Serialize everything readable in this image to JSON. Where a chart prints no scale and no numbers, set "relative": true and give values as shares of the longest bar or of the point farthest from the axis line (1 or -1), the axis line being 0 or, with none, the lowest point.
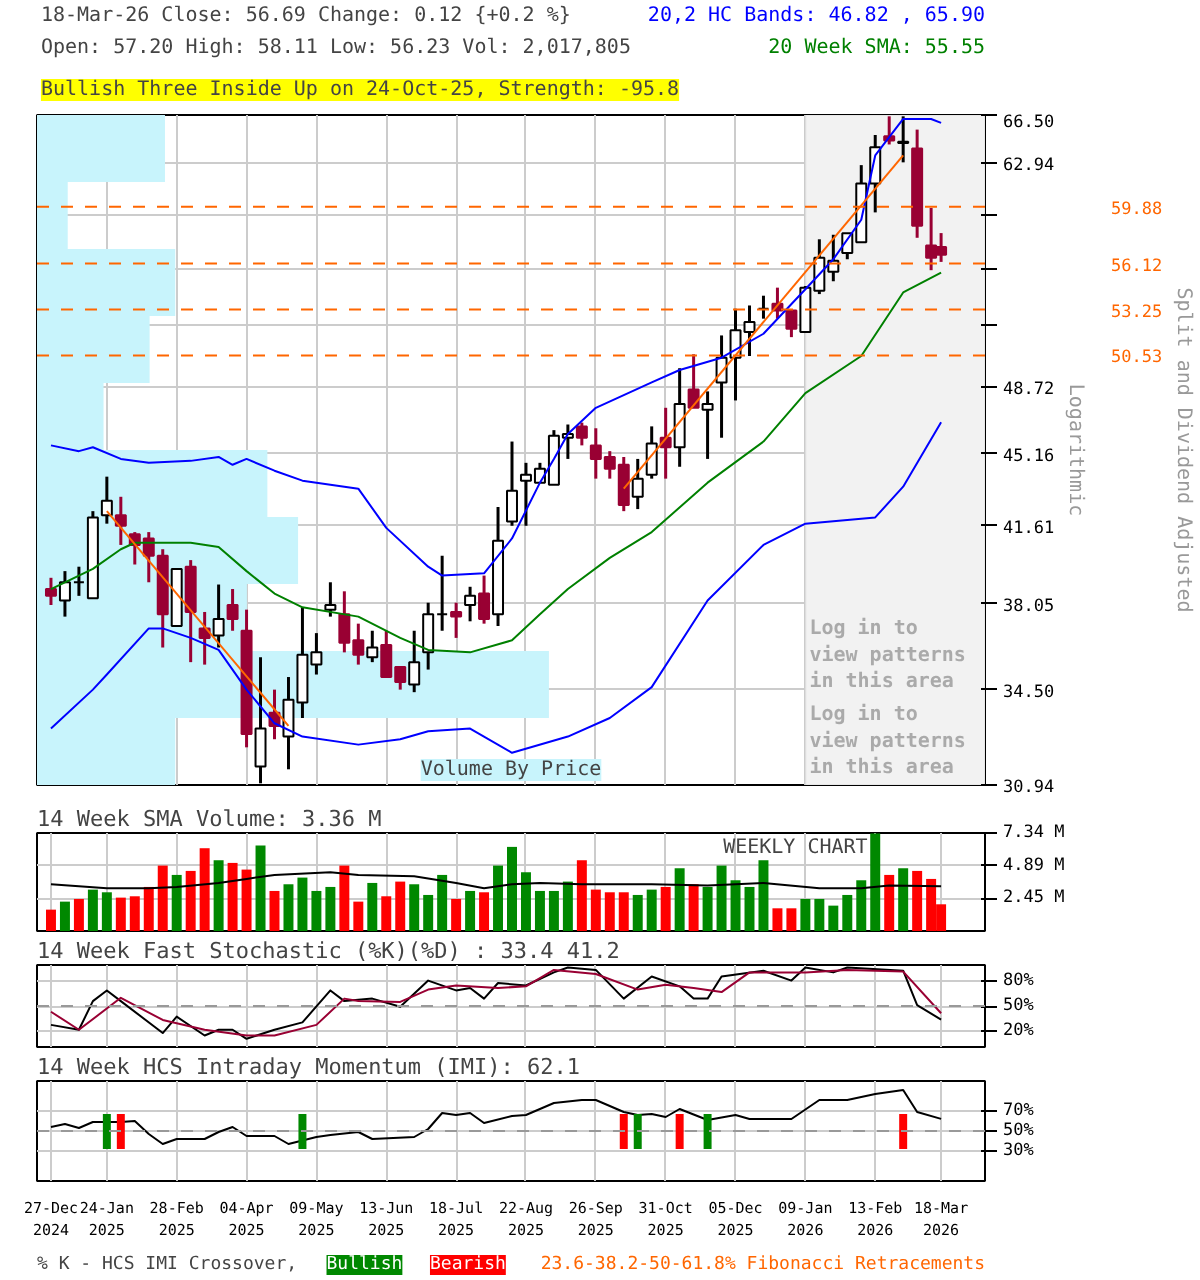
{
  "chart_data": [
    {
      "type": "candlestick",
      "title": "18-Mar-26   Close: 56.69   Change: 0.12 {+0.2 %}",
      "subtitle": "Open: 57.20   High: 58.11   Low: 56.23   Vol: 2,017,805",
      "ylabel": "Split and Dividend Adjusted",
      "annotations": [
        "Bullish Three Inside Up on 24-Oct-25, Strength: -95.8",
        "Logarithmic",
        "Log in to view patterns in this area"
      ],
      "x": [
        "2024-12-27",
        "2025-01-03",
        "2025-01-10",
        "2025-01-17",
        "2025-01-24",
        "2025-01-31",
        "2025-02-07",
        "2025-02-14",
        "2025-02-21",
        "2025-02-28",
        "2025-03-07",
        "2025-03-14",
        "2025-03-21",
        "2025-03-28",
        "2025-04-04",
        "2025-04-11",
        "2025-04-18",
        "2025-04-25",
        "2025-05-02",
        "2025-05-09",
        "2025-05-16",
        "2025-05-23",
        "2025-05-30",
        "2025-06-06",
        "2025-06-13",
        "2025-06-20",
        "2025-06-27",
        "2025-07-04",
        "2025-07-11",
        "2025-07-18",
        "2025-07-25",
        "2025-08-01",
        "2025-08-08",
        "2025-08-15",
        "2025-08-22",
        "2025-08-29",
        "2025-09-05",
        "2025-09-12",
        "2025-09-19",
        "2025-09-26",
        "2025-10-03",
        "2025-10-10",
        "2025-10-17",
        "2025-10-24",
        "2025-10-31",
        "2025-11-07",
        "2025-11-14",
        "2025-11-21",
        "2025-11-28",
        "2025-12-05",
        "2025-12-12",
        "2025-12-19",
        "2025-12-26",
        "2026-01-02",
        "2026-01-09",
        "2026-01-16",
        "2026-01-23",
        "2026-01-30",
        "2026-02-06",
        "2026-02-13",
        "2026-02-20",
        "2026-02-27",
        "2026-03-06",
        "2026-03-13",
        "2026-03-18"
      ],
      "ohlc": [
        [
          38.7,
          39.2,
          38.0,
          38.4
        ],
        [
          38.2,
          39.5,
          37.5,
          39.0
        ],
        [
          39.0,
          39.7,
          38.4,
          39.0
        ],
        [
          38.3,
          42.3,
          38.3,
          42.0
        ],
        [
          42.1,
          44.0,
          41.7,
          42.8
        ],
        [
          42.1,
          43.0,
          40.7,
          41.6
        ],
        [
          41.2,
          41.3,
          39.8,
          40.7
        ],
        [
          41.0,
          41.3,
          39.0,
          40.2
        ],
        [
          40.2,
          40.5,
          36.2,
          37.6
        ],
        [
          37.1,
          39.6,
          37.1,
          39.6
        ],
        [
          39.7,
          40.0,
          35.6,
          37.7
        ],
        [
          37.0,
          37.7,
          35.5,
          36.6
        ],
        [
          36.7,
          38.9,
          36.2,
          37.4
        ],
        [
          38.0,
          38.7,
          36.9,
          37.4
        ],
        [
          36.9,
          37.8,
          32.3,
          32.8
        ],
        [
          31.6,
          35.8,
          31.0,
          33.0
        ],
        [
          33.6,
          34.5,
          32.6,
          33.1
        ],
        [
          32.7,
          35.0,
          31.5,
          34.1
        ],
        [
          34.0,
          37.9,
          33.4,
          35.9
        ],
        [
          35.5,
          36.8,
          35.1,
          36.0
        ],
        [
          37.8,
          39.0,
          37.5,
          38.0
        ],
        [
          37.6,
          38.6,
          36.0,
          36.4
        ],
        [
          36.5,
          37.2,
          35.5,
          35.9
        ],
        [
          35.8,
          36.9,
          35.6,
          36.2
        ],
        [
          36.3,
          36.9,
          35.0,
          35.0
        ],
        [
          35.4,
          35.4,
          34.5,
          34.8
        ],
        [
          34.7,
          36.9,
          34.4,
          35.6
        ],
        [
          36.0,
          38.1,
          35.3,
          37.6
        ],
        [
          37.6,
          40.2,
          36.9,
          37.6
        ],
        [
          37.7,
          38.1,
          36.6,
          37.5
        ],
        [
          38.0,
          38.8,
          37.3,
          38.4
        ],
        [
          38.5,
          39.3,
          37.2,
          37.4
        ],
        [
          37.6,
          42.5,
          37.1,
          40.9
        ],
        [
          41.8,
          45.8,
          41.6,
          43.3
        ],
        [
          43.8,
          44.7,
          41.6,
          44.1
        ],
        [
          43.7,
          44.7,
          43.7,
          44.4
        ],
        [
          43.6,
          46.4,
          43.6,
          46.1
        ],
        [
          46.0,
          46.7,
          44.9,
          46.2
        ],
        [
          46.6,
          46.8,
          45.6,
          46.0
        ],
        [
          45.6,
          46.5,
          43.9,
          44.9
        ],
        [
          45.0,
          45.3,
          43.9,
          44.4
        ],
        [
          44.6,
          45.0,
          42.3,
          42.6
        ],
        [
          43.0,
          44.9,
          42.4,
          43.9
        ],
        [
          44.1,
          46.6,
          43.9,
          45.7
        ],
        [
          46.0,
          47.6,
          43.9,
          45.5
        ],
        [
          45.5,
          49.8,
          44.5,
          47.8
        ],
        [
          48.6,
          50.6,
          47.6,
          47.6
        ],
        [
          47.5,
          48.5,
          44.9,
          47.8
        ],
        [
          49.0,
          51.7,
          46.0,
          50.4
        ],
        [
          50.4,
          53.3,
          48.0,
          52.0
        ],
        [
          51.9,
          53.5,
          50.5,
          52.5
        ],
        [
          53.3,
          54.1,
          52.7,
          53.3
        ],
        [
          53.6,
          54.6,
          52.7,
          53.2
        ],
        [
          53.2,
          53.2,
          51.6,
          52.1
        ],
        [
          51.9,
          54.7,
          51.9,
          54.6
        ],
        [
          54.4,
          57.7,
          54.2,
          56.5
        ],
        [
          55.6,
          58.0,
          55.0,
          56.3
        ],
        [
          56.8,
          58.1,
          56.4,
          58.1
        ],
        [
          57.5,
          62.8,
          57.5,
          61.5
        ],
        [
          61.5,
          65.0,
          59.5,
          64.1
        ],
        [
          64.9,
          66.4,
          64.3,
          64.6
        ],
        [
          64.4,
          66.4,
          63.0,
          64.5
        ],
        [
          64.0,
          65.4,
          57.8,
          58.6
        ],
        [
          57.3,
          59.8,
          55.7,
          56.5
        ],
        [
          57.2,
          58.11,
          56.23,
          56.69
        ]
      ],
      "colors": [
        "#990033",
        "#ffffff",
        "#000000",
        "#ffffff",
        "#ffffff",
        "#990033",
        "#990033",
        "#990033",
        "#990033",
        "#ffffff",
        "#990033",
        "#990033",
        "#ffffff",
        "#990033",
        "#990033",
        "#ffffff",
        "#990033",
        "#ffffff",
        "#ffffff",
        "#ffffff",
        "#ffffff",
        "#990033",
        "#990033",
        "#ffffff",
        "#990033",
        "#990033",
        "#ffffff",
        "#ffffff",
        "#000000",
        "#990033",
        "#ffffff",
        "#990033",
        "#ffffff",
        "#ffffff",
        "#ffffff",
        "#ffffff",
        "#ffffff",
        "#ffffff",
        "#990033",
        "#990033",
        "#990033",
        "#990033",
        "#ffffff",
        "#ffffff",
        "#990033",
        "#ffffff",
        "#990033",
        "#ffffff",
        "#ffffff",
        "#ffffff",
        "#ffffff",
        "#000000",
        "#990033",
        "#990033",
        "#ffffff",
        "#ffffff",
        "#ffffff",
        "#ffffff",
        "#ffffff",
        "#ffffff",
        "#990033",
        "#ffffff",
        "#990033",
        "#990033",
        "#990033"
      ],
      "series": [
        {
          "name": "20,2 HC Bands: 46.82 , 65.90",
          "type": "line",
          "color": "#0000ff",
          "x": [
            "2024-12-27",
            "2025-01-10",
            "2025-01-17",
            "2025-01-31",
            "2025-02-14",
            "2025-03-07",
            "2025-03-21",
            "2025-03-28",
            "2025-04-04",
            "2025-04-18",
            "2025-05-02",
            "2025-05-23",
            "2025-05-30",
            "2025-06-13",
            "2025-07-04",
            "2025-07-11",
            "2025-08-01",
            "2025-08-15",
            "2025-08-29",
            "2025-09-05",
            "2025-09-12",
            "2025-09-26",
            "2025-10-24",
            "2025-11-07",
            "2025-11-28",
            "2025-12-19",
            "2026-01-09",
            "2026-01-23",
            "2026-02-06",
            "2026-02-13",
            "2026-02-27",
            "2026-03-13",
            "2026-03-18"
          ],
          "values": [
            45.6,
            45.3,
            45.5,
            44.9,
            44.7,
            44.8,
            45.0,
            44.6,
            44.9,
            44.3,
            43.8,
            43.5,
            43.4,
            41.5,
            39.7,
            39.3,
            39.4,
            41.0,
            43.7,
            44.9,
            46.2,
            47.6,
            49.0,
            49.7,
            50.4,
            51.8,
            54.5,
            56.4,
            59.0,
            63.5,
            66.2,
            66.2,
            65.9
          ]
        },
        {
          "type": "line",
          "color": "#0000ff",
          "x": [
            "2024-12-27",
            "2025-01-17",
            "2025-01-24",
            "2025-02-14",
            "2025-02-21",
            "2025-03-07",
            "2025-03-21",
            "2025-04-04",
            "2025-04-18",
            "2025-05-02",
            "2025-05-30",
            "2025-06-20",
            "2025-07-04",
            "2025-07-25",
            "2025-08-15",
            "2025-09-12",
            "2025-10-03",
            "2025-10-24",
            "2025-11-21",
            "2025-12-19",
            "2026-01-09",
            "2026-02-13",
            "2026-02-27",
            "2026-03-18"
          ],
          "values": [
            33.0,
            34.5,
            35.1,
            37.0,
            37.0,
            36.6,
            36.1,
            34.5,
            33.2,
            32.7,
            32.4,
            32.6,
            32.9,
            33.0,
            32.1,
            32.7,
            33.4,
            34.6,
            38.2,
            40.7,
            41.7,
            42.0,
            43.5,
            46.82
          ]
        },
        {
          "name": "20 Week SMA: 55.55",
          "type": "line",
          "color": "#008000",
          "x": [
            "2024-12-27",
            "2025-01-17",
            "2025-01-31",
            "2025-02-07",
            "2025-03-07",
            "2025-03-21",
            "2025-04-04",
            "2025-04-18",
            "2025-05-02",
            "2025-05-30",
            "2025-06-20",
            "2025-07-04",
            "2025-07-25",
            "2025-08-15",
            "2025-08-29",
            "2025-09-12",
            "2025-10-03",
            "2025-10-24",
            "2025-11-21",
            "2025-12-19",
            "2026-01-09",
            "2026-02-06",
            "2026-02-27",
            "2026-03-18"
          ],
          "values": [
            38.7,
            39.6,
            40.5,
            40.8,
            40.8,
            40.6,
            39.5,
            38.5,
            37.9,
            37.5,
            36.6,
            36.1,
            36.0,
            36.5,
            37.6,
            38.7,
            40.1,
            41.3,
            43.7,
            45.8,
            48.4,
            50.5,
            54.3,
            55.55
          ]
        },
        {
          "type": "line",
          "color": "#ff6600",
          "x": [
            "2025-01-24",
            "2025-04-25"
          ],
          "values": [
            42.3,
            33.1
          ]
        },
        {
          "type": "line",
          "color": "#ff6600",
          "x": [
            "2025-10-10",
            "2026-02-27"
          ],
          "values": [
            43.4,
            63.5
          ]
        }
      ],
      "log": true,
      "ylim": [
        30.94,
        66.5
      ],
      "yticks": [
        {
          "value": 30.94,
          "label": "30.94"
        },
        {
          "value": 34.5,
          "label": "34.50"
        },
        {
          "value": 38.05,
          "label": "38.05"
        },
        {
          "value": 41.61,
          "label": "41.61"
        },
        {
          "value": 45.16,
          "label": "45.16"
        },
        {
          "value": 48.72,
          "label": "48.72"
        },
        {
          "value": 52.27,
          "label": null
        },
        {
          "value": 55.83,
          "label": null
        },
        {
          "value": 59.38,
          "label": null
        },
        {
          "value": 62.94,
          "label": "62.94"
        },
        {
          "value": 66.5,
          "label": "66.50"
        }
      ],
      "xlim": [
        "2024-12-20",
        "2026-04-09"
      ],
      "xticks": [
        {
          "value": "2024-12-27",
          "label": null
        },
        {
          "value": "2025-01-24",
          "label": null
        },
        {
          "value": "2025-02-28",
          "label": null
        },
        {
          "value": "2025-04-04",
          "label": null
        },
        {
          "value": "2025-05-09",
          "label": null
        },
        {
          "value": "2025-06-13",
          "label": null
        },
        {
          "value": "2025-07-18",
          "label": null
        },
        {
          "value": "2025-08-22",
          "label": null
        },
        {
          "value": "2025-09-26",
          "label": null
        },
        {
          "value": "2025-10-31",
          "label": null
        },
        {
          "value": "2025-12-05",
          "label": null
        },
        {
          "value": "2026-01-09",
          "label": null
        },
        {
          "value": "2026-02-13",
          "label": null
        },
        {
          "value": "2026-03-18",
          "label": null
        }
      ],
      "tick_labels": "y",
      "grid": true,
      "legend": "top right",
      "ref_lines": [
        {
          "axis": "y",
          "value": 59.88,
          "label": "59.88",
          "color": "#ff6600",
          "line_style": "dashed"
        },
        {
          "axis": "y",
          "value": 56.12,
          "label": "56.12",
          "color": "#ff6600",
          "line_style": "dashed"
        },
        {
          "axis": "y",
          "value": 53.25,
          "label": "53.25",
          "color": "#ff6600",
          "line_style": "dashed"
        },
        {
          "axis": "y",
          "value": 50.53,
          "label": "50.53",
          "color": "#ff6600",
          "line_style": "dashed"
        }
      ],
      "bands": [
        {
          "axis": "x",
          "from": "2026-01-09",
          "to": "2026-04-09",
          "label": "Log in to view patterns in this area",
          "color": "#f2f2f2"
        }
      ]
    },
    {
      "type": "bar",
      "orientation": "horizontal",
      "relative": true,
      "categories": [
        null,
        null,
        null,
        null,
        null,
        null,
        null,
        null,
        null,
        null
      ],
      "series": [
        {
          "name": "Volume By Price",
          "color": "#c8f4fc",
          "values": [
            0.25,
            0.06,
            0.27,
            0.22,
            0.13,
            0.45,
            0.51,
            0.41,
            1,
            0.27
          ]
        }
      ]
    },
    {
      "type": "bar",
      "title": "14 Week SMA Volume: 3.36 M",
      "annotations": [
        "WEEKLY CHART"
      ],
      "x": [
        "2024-12-27",
        "2025-01-03",
        "2025-01-10",
        "2025-01-17",
        "2025-01-24",
        "2025-01-31",
        "2025-02-07",
        "2025-02-14",
        "2025-02-21",
        "2025-02-28",
        "2025-03-07",
        "2025-03-14",
        "2025-03-21",
        "2025-03-28",
        "2025-04-04",
        "2025-04-11",
        "2025-04-18",
        "2025-04-25",
        "2025-05-02",
        "2025-05-09",
        "2025-05-16",
        "2025-05-23",
        "2025-05-30",
        "2025-06-06",
        "2025-06-13",
        "2025-06-20",
        "2025-06-27",
        "2025-07-04",
        "2025-07-11",
        "2025-07-18",
        "2025-07-25",
        "2025-08-01",
        "2025-08-08",
        "2025-08-15",
        "2025-08-22",
        "2025-08-29",
        "2025-09-05",
        "2025-09-12",
        "2025-09-19",
        "2025-09-26",
        "2025-10-03",
        "2025-10-10",
        "2025-10-17",
        "2025-10-24",
        "2025-10-31",
        "2025-11-07",
        "2025-11-14",
        "2025-11-21",
        "2025-11-28",
        "2025-12-05",
        "2025-12-12",
        "2025-12-19",
        "2025-12-26",
        "2026-01-02",
        "2026-01-09",
        "2026-01-16",
        "2026-01-23",
        "2026-01-30",
        "2026-02-06",
        "2026-02-13",
        "2026-02-20",
        "2026-02-27",
        "2026-03-06",
        "2026-03-13",
        "2026-03-18"
      ],
      "values": [
        1.6,
        2.2,
        2.4,
        3.1,
        2.9,
        2.5,
        2.6,
        3.3,
        4.9,
        4.2,
        4.5,
        6.2,
        5.3,
        5.1,
        4.6,
        6.4,
        3.0,
        3.5,
        4.0,
        3.0,
        3.3,
        4.9,
        2.2,
        3.6,
        2.6,
        3.7,
        3.5,
        2.7,
        4.2,
        2.4,
        3.0,
        2.9,
        4.9,
        6.3,
        4.4,
        3.0,
        3.0,
        3.7,
        5.3,
        3.1,
        2.9,
        2.9,
        2.7,
        3.1,
        3.3,
        4.7,
        3.5,
        3.3,
        4.9,
        3.8,
        3.3,
        5.3,
        1.7,
        1.7,
        2.4,
        2.4,
        1.9,
        2.7,
        3.8,
        7.3,
        4.2,
        4.7,
        4.5,
        3.9,
        2.0
      ],
      "colors": [
        "#ff0000",
        "#008800",
        "#ff0000",
        "#008800",
        "#008800",
        "#ff0000",
        "#ff0000",
        "#ff0000",
        "#ff0000",
        "#008800",
        "#ff0000",
        "#ff0000",
        "#008800",
        "#ff0000",
        "#ff0000",
        "#008800",
        "#ff0000",
        "#008800",
        "#008800",
        "#008800",
        "#008800",
        "#ff0000",
        "#ff0000",
        "#008800",
        "#ff0000",
        "#ff0000",
        "#008800",
        "#008800",
        "#008800",
        "#ff0000",
        "#008800",
        "#ff0000",
        "#008800",
        "#008800",
        "#008800",
        "#008800",
        "#008800",
        "#008800",
        "#ff0000",
        "#ff0000",
        "#ff0000",
        "#ff0000",
        "#008800",
        "#008800",
        "#ff0000",
        "#008800",
        "#ff0000",
        "#008800",
        "#008800",
        "#008800",
        "#008800",
        "#008800",
        "#ff0000",
        "#ff0000",
        "#008800",
        "#008800",
        "#008800",
        "#008800",
        "#008800",
        "#008800",
        "#ff0000",
        "#008800",
        "#ff0000",
        "#ff0000",
        "#ff0000"
      ],
      "series": [
        {
          "type": "line",
          "color": "#000000",
          "x": [
            "2024-12-27",
            "2025-01-24",
            "2025-02-14",
            "2025-02-28",
            "2025-03-21",
            "2025-04-04",
            "2025-04-18",
            "2025-05-16",
            "2025-05-30",
            "2025-06-27",
            "2025-07-18",
            "2025-08-01",
            "2025-08-15",
            "2025-08-29",
            "2025-09-19",
            "2025-10-24",
            "2025-11-21",
            "2025-12-19",
            "2026-01-16",
            "2026-02-06",
            "2026-02-20",
            "2026-03-18"
          ],
          "values": [
            3.5,
            3.2,
            3.2,
            3.3,
            3.6,
            3.9,
            4.2,
            4.4,
            4.2,
            4.1,
            3.6,
            3.2,
            3.5,
            3.6,
            3.5,
            3.5,
            3.4,
            3.6,
            3.2,
            3.2,
            3.4,
            3.36
          ]
        }
      ],
      "ylim": [
        0,
        7.34
      ],
      "yticks": [
        {
          "value": 2.45,
          "label": "2.45 M"
        },
        {
          "value": 4.89,
          "label": "4.89 M"
        },
        {
          "value": 7.34,
          "label": "7.34 M"
        }
      ],
      "xlim": [
        "2024-12-20",
        "2026-04-09"
      ],
      "xticks": [
        {
          "value": "2024-12-27",
          "label": null
        },
        {
          "value": "2025-01-24",
          "label": null
        },
        {
          "value": "2025-02-28",
          "label": null
        },
        {
          "value": "2025-04-04",
          "label": null
        },
        {
          "value": "2025-05-09",
          "label": null
        },
        {
          "value": "2025-06-13",
          "label": null
        },
        {
          "value": "2025-07-18",
          "label": null
        },
        {
          "value": "2025-08-22",
          "label": null
        },
        {
          "value": "2025-09-26",
          "label": null
        },
        {
          "value": "2025-10-31",
          "label": null
        },
        {
          "value": "2025-12-05",
          "label": null
        },
        {
          "value": "2026-01-09",
          "label": null
        },
        {
          "value": "2026-02-13",
          "label": null
        },
        {
          "value": "2026-03-18",
          "label": null
        }
      ],
      "tick_labels": "y",
      "grid": true
    },
    {
      "type": "line",
      "title": "14 Week Fast Stochastic (%K)(%D) : 33.4  41.2",
      "series": [
        {
          "type": "line",
          "color": "#000000",
          "x": [
            "2024-12-27",
            "2025-01-10",
            "2025-01-17",
            "2025-01-24",
            "2025-01-31",
            "2025-02-21",
            "2025-02-28",
            "2025-03-14",
            "2025-03-21",
            "2025-03-28",
            "2025-04-04",
            "2025-04-18",
            "2025-05-02",
            "2025-05-16",
            "2025-05-23",
            "2025-06-06",
            "2025-06-20",
            "2025-07-04",
            "2025-07-18",
            "2025-07-25",
            "2025-08-01",
            "2025-08-08",
            "2025-08-22",
            "2025-09-05",
            "2025-09-12",
            "2025-09-26",
            "2025-10-10",
            "2025-10-24",
            "2025-11-07",
            "2025-11-14",
            "2025-11-21",
            "2025-11-28",
            "2025-12-19",
            "2026-01-02",
            "2026-01-09",
            "2026-01-23",
            "2026-01-30",
            "2026-02-27",
            "2026-03-06",
            "2026-03-18"
          ],
          "values": [
            27,
            21,
            56,
            69,
            56,
            17,
            37,
            14,
            21,
            21,
            10,
            21,
            30,
            69,
            56,
            59,
            49,
            81,
            69,
            72,
            59,
            78,
            75,
            91,
            97,
            94,
            59,
            86,
            74,
            59,
            59,
            86,
            93,
            81,
            97,
            91,
            97,
            93,
            51,
            33.4
          ]
        },
        {
          "type": "line",
          "color": "#990033",
          "x": [
            "2024-12-27",
            "2025-01-10",
            "2025-01-31",
            "2025-02-21",
            "2025-03-14",
            "2025-04-04",
            "2025-04-18",
            "2025-05-09",
            "2025-05-23",
            "2025-05-30",
            "2025-06-20",
            "2025-07-04",
            "2025-07-18",
            "2025-08-08",
            "2025-08-22",
            "2025-09-05",
            "2025-09-26",
            "2025-10-17",
            "2025-10-31",
            "2025-11-14",
            "2025-11-28",
            "2025-12-12",
            "2026-01-09",
            "2026-01-30",
            "2026-02-27",
            "2026-03-18"
          ],
          "values": [
            43,
            21,
            60,
            33,
            21,
            14,
            14,
            27,
            59,
            56,
            55,
            70,
            75,
            72,
            74,
            94,
            89,
            70,
            76,
            72,
            67,
            91,
            91,
            94,
            92,
            41.2
          ]
        }
      ],
      "ylim": [
        0,
        100
      ],
      "yticks": [
        {
          "value": 20,
          "label": "20%"
        },
        {
          "value": 50,
          "label": "50%"
        },
        {
          "value": 80,
          "label": "80%"
        }
      ],
      "xlim": [
        "2024-12-20",
        "2026-04-09"
      ],
      "xticks": [
        {
          "value": "2024-12-27",
          "label": null
        },
        {
          "value": "2025-01-24",
          "label": null
        },
        {
          "value": "2025-02-28",
          "label": null
        },
        {
          "value": "2025-04-04",
          "label": null
        },
        {
          "value": "2025-05-09",
          "label": null
        },
        {
          "value": "2025-06-13",
          "label": null
        },
        {
          "value": "2025-07-18",
          "label": null
        },
        {
          "value": "2025-08-22",
          "label": null
        },
        {
          "value": "2025-09-26",
          "label": null
        },
        {
          "value": "2025-10-31",
          "label": null
        },
        {
          "value": "2025-12-05",
          "label": null
        },
        {
          "value": "2026-01-09",
          "label": null
        },
        {
          "value": "2026-02-13",
          "label": null
        },
        {
          "value": "2026-03-18",
          "label": null
        }
      ],
      "tick_labels": "y",
      "grid": true,
      "ref_lines": [
        {
          "axis": "y",
          "value": 50,
          "color": "#999999",
          "line_style": "dashed"
        }
      ]
    },
    {
      "type": "line",
      "title": "14 Week HCS Intraday Momentum (IMI): 62.1",
      "annotations": [
        "% K - HCS IMI Crossover,",
        "23.6-38.2-50-61.8% Fibonacci Retracements"
      ],
      "series": [
        {
          "type": "line",
          "color": "#000000",
          "x": [
            "2024-12-27",
            "2025-01-03",
            "2025-01-10",
            "2025-01-17",
            "2025-01-31",
            "2025-02-07",
            "2025-02-14",
            "2025-02-21",
            "2025-02-28",
            "2025-03-14",
            "2025-03-21",
            "2025-03-28",
            "2025-04-04",
            "2025-04-18",
            "2025-04-25",
            "2025-05-09",
            "2025-05-16",
            "2025-05-30",
            "2025-06-06",
            "2025-06-27",
            "2025-07-04",
            "2025-07-11",
            "2025-07-18",
            "2025-07-25",
            "2025-08-01",
            "2025-08-15",
            "2025-08-22",
            "2025-09-05",
            "2025-09-19",
            "2025-09-26",
            "2025-10-10",
            "2025-10-17",
            "2025-10-24",
            "2025-10-31",
            "2025-11-07",
            "2025-11-21",
            "2025-12-05",
            "2025-12-12",
            "2026-01-02",
            "2026-01-16",
            "2026-01-30",
            "2026-02-13",
            "2026-02-20",
            "2026-02-27",
            "2026-03-06",
            "2026-03-18"
          ],
          "values": [
            54,
            57,
            53,
            59,
            59,
            60,
            47,
            37,
            42,
            42,
            49,
            54,
            45,
            45,
            37,
            44,
            46,
            49,
            42,
            44,
            52,
            68,
            66,
            68,
            58,
            65,
            66,
            78,
            81,
            81,
            69,
            66,
            67,
            64,
            72,
            61,
            66,
            62,
            62,
            81,
            81,
            87,
            89,
            91,
            69,
            62.1
          ]
        },
        {
          "name": "Bullish",
          "type": "bar",
          "color": "#008800",
          "x": [
            "2025-01-24",
            "2025-05-02",
            "2025-10-17",
            "2025-11-21"
          ],
          "values": [
            35,
            35,
            35,
            35
          ],
          "base": [
            32,
            32,
            32,
            32
          ]
        },
        {
          "name": "Bearish",
          "type": "bar",
          "color": "#ff0000",
          "x": [
            "2025-01-31",
            "2025-10-10",
            "2025-11-07",
            "2026-02-27"
          ],
          "values": [
            35,
            35,
            35,
            35
          ],
          "base": [
            32,
            32,
            32,
            32
          ]
        }
      ],
      "ylim": [
        0,
        100
      ],
      "yticks": [
        {
          "value": 30,
          "label": "30%"
        },
        {
          "value": 50,
          "label": "50%"
        },
        {
          "value": 70,
          "label": "70%"
        }
      ],
      "xlim": [
        "2024-12-20",
        "2026-04-09"
      ],
      "xticks": [
        {
          "value": "2024-12-27",
          "label": "27-Dec\n2024"
        },
        {
          "value": "2025-01-24",
          "label": "24-Jan\n2025"
        },
        {
          "value": "2025-02-28",
          "label": "28-Feb\n2025"
        },
        {
          "value": "2025-04-04",
          "label": "04-Apr\n2025"
        },
        {
          "value": "2025-05-09",
          "label": "09-May\n2025"
        },
        {
          "value": "2025-06-13",
          "label": "13-Jun\n2025"
        },
        {
          "value": "2025-07-18",
          "label": "18-Jul\n2025"
        },
        {
          "value": "2025-08-22",
          "label": "22-Aug\n2025"
        },
        {
          "value": "2025-09-26",
          "label": "26-Sep\n2025"
        },
        {
          "value": "2025-10-31",
          "label": "31-Oct\n2025"
        },
        {
          "value": "2025-12-05",
          "label": "05-Dec\n2025"
        },
        {
          "value": "2026-01-09",
          "label": "09-Jan\n2026"
        },
        {
          "value": "2026-02-13",
          "label": "13-Feb\n2026"
        },
        {
          "value": "2026-03-18",
          "label": "18-Mar\n2026"
        }
      ],
      "grid": true,
      "legend": "bottom",
      "ref_lines": [
        {
          "axis": "y",
          "value": 50,
          "color": "#999999",
          "line_style": "dashed"
        }
      ]
    }
  ]
}
